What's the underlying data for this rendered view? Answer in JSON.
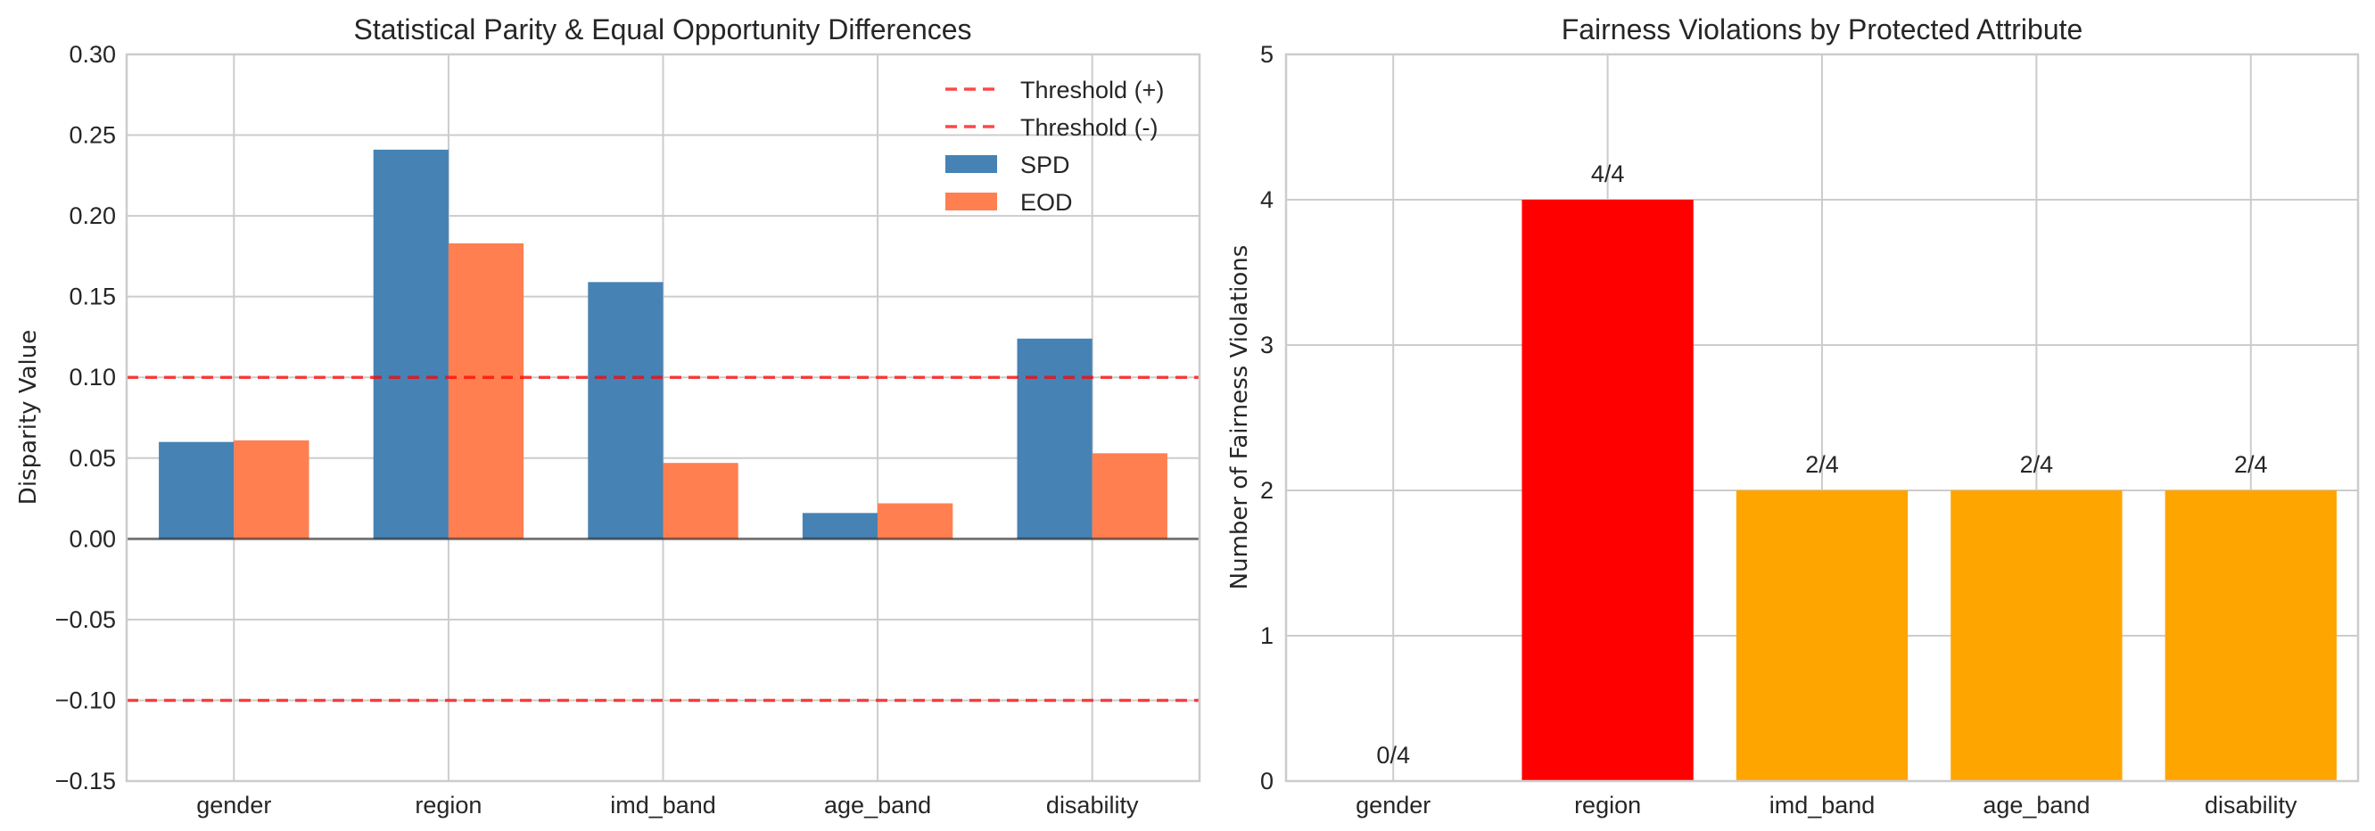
{
  "chart_data": [
    {
      "type": "bar",
      "title": "Statistical Parity & Equal Opportunity Differences",
      "xlabel": "",
      "ylabel": "Disparity Value",
      "categories": [
        "gender",
        "region",
        "imd_band",
        "age_band",
        "disability"
      ],
      "series": [
        {
          "name": "SPD",
          "color": "#4682b4",
          "values": [
            0.06,
            0.241,
            0.159,
            0.016,
            0.124
          ]
        },
        {
          "name": "EOD",
          "color": "#ff7f50",
          "values": [
            0.061,
            0.183,
            0.047,
            0.022,
            0.053
          ]
        }
      ],
      "reference_lines": [
        {
          "name": "Threshold (+)",
          "value": 0.1,
          "color": "#ff0000",
          "style": "dashed"
        },
        {
          "name": "Threshold (-)",
          "value": -0.1,
          "color": "#ff0000",
          "style": "dashed"
        },
        {
          "name": "zero",
          "value": 0.0,
          "color": "#808080",
          "style": "solid"
        }
      ],
      "ylim": [
        -0.15,
        0.3
      ],
      "yticks": [
        -0.15,
        -0.1,
        -0.05,
        0.0,
        0.05,
        0.1,
        0.15,
        0.2,
        0.25,
        0.3
      ],
      "ytick_labels": [
        "−0.15",
        "−0.10",
        "−0.05",
        "0.00",
        "0.05",
        "0.10",
        "0.15",
        "0.20",
        "0.25",
        "0.30"
      ],
      "legend": {
        "placement": "top-right",
        "entries": [
          {
            "label": "Threshold (+)",
            "kind": "line",
            "color": "#ff0000"
          },
          {
            "label": "Threshold (-)",
            "kind": "line",
            "color": "#ff0000"
          },
          {
            "label": "SPD",
            "kind": "patch",
            "color": "#4682b4"
          },
          {
            "label": "EOD",
            "kind": "patch",
            "color": "#ff7f50"
          }
        ]
      },
      "grid": true
    },
    {
      "type": "bar",
      "title": "Fairness Violations by Protected Attribute",
      "xlabel": "",
      "ylabel": "Number of Fairness Violations",
      "categories": [
        "gender",
        "region",
        "imd_band",
        "age_band",
        "disability"
      ],
      "values": [
        0,
        4,
        2,
        2,
        2
      ],
      "colors": [
        "#ffa500",
        "#ff0000",
        "#ffa500",
        "#ffa500",
        "#ffa500"
      ],
      "data_labels": [
        "0/4",
        "4/4",
        "2/4",
        "2/4",
        "2/4"
      ],
      "ylim": [
        0,
        5
      ],
      "yticks": [
        0,
        1,
        2,
        3,
        4,
        5
      ],
      "ytick_labels": [
        "0",
        "1",
        "2",
        "3",
        "4",
        "5"
      ],
      "grid": true
    }
  ]
}
